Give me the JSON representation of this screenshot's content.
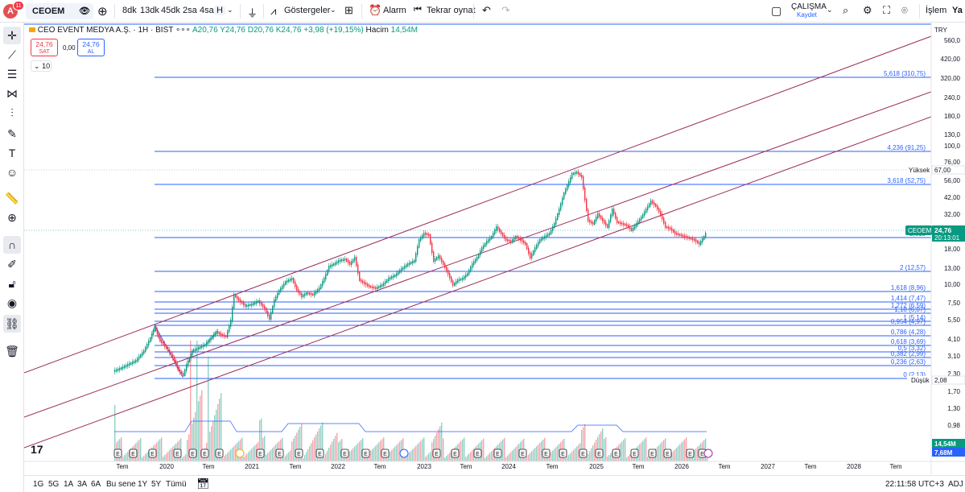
{
  "topbar": {
    "avatar_letter": "A",
    "notif_count": "11",
    "symbol": "CEOEM",
    "intervals": [
      "8dk",
      "13dk",
      "45dk",
      "2sa",
      "4sa",
      "H"
    ],
    "indicators_label": "Göstergeler",
    "alarm_label": "Alarm",
    "replay_label": "Tekrar oynat",
    "workspace_name": "ÇALIŞMA",
    "save_label": "Kaydet",
    "trade_label": "İşlem",
    "publish_label": "Ya"
  },
  "legend": {
    "title": "CEO EVENT MEDYA A.Ş. · 1H · BIST",
    "ohlc": "A20,76 Y24,76 D20,76 K24,76 +3,98 (+19,15%)",
    "volume_label": "Hacim",
    "volume_value": "14,54M",
    "sell_price": "24,76",
    "sell_label": "SAT",
    "spread": "0,00",
    "buy_price": "24,76",
    "buy_label": "AL",
    "indicator_count": "10"
  },
  "price_axis": {
    "currency": "TRY",
    "ticks": [
      "560,0",
      "420,00",
      "320,00",
      "240,0",
      "180,0",
      "130,0",
      "100,0",
      "76,00",
      "56,00",
      "42,00",
      "32,00",
      "24,00",
      "18,00",
      "13,00",
      "10,00",
      "7,50",
      "5,50",
      "4,10",
      "3,10",
      "2,30",
      "1,70",
      "1,30",
      "0,98"
    ],
    "high_label": "Yüksek",
    "high_value": "67,00",
    "low_label": "Düşük",
    "low_value": "2,08",
    "last_symbol": "CEOEM",
    "last_price": "24,76",
    "countdown": "20:13:01",
    "vol_1": "14,54M",
    "vol_2": "7,68M"
  },
  "fib_levels": [
    {
      "label": "5,618 (310,75)"
    },
    {
      "label": "4,236 (91,25)"
    },
    {
      "label": "3,618 (52,75)"
    },
    {
      "label": "2,618"
    },
    {
      "label": "2 (12,57)"
    },
    {
      "label": "1,618 (8,96)"
    },
    {
      "label": "1,414 (7,47)"
    },
    {
      "label": "1,272 (6,59)"
    },
    {
      "label": "1,18 (6,07)"
    },
    {
      "label": "1 (5,14)"
    },
    {
      "label": "0,954 (4,97)"
    },
    {
      "label": "0,786 (4,28)"
    },
    {
      "label": "0,618 (3,69)"
    },
    {
      "label": "0,5 (3,32)"
    },
    {
      "label": "0,382 (2,99)"
    },
    {
      "label": "0,236 (2,63)"
    },
    {
      "label": "0 (2,13)"
    }
  ],
  "time_axis": [
    "Tem",
    "2020",
    "Tem",
    "2021",
    "Tem",
    "2022",
    "Tem",
    "2023",
    "Tem",
    "2024",
    "Tem",
    "2025",
    "Tem",
    "2026",
    "Tem",
    "2027",
    "Tem",
    "2028",
    "Tem"
  ],
  "bottombar": {
    "ranges": [
      "1G",
      "5G",
      "1A",
      "3A",
      "6A",
      "Bu sene",
      "1Y",
      "5Y",
      "Tümü"
    ],
    "clock": "22:11:58 UTC+3",
    "adj": "ADJ"
  },
  "colors": {
    "up": "#089981",
    "down": "#f23645",
    "fib": "#2962ff",
    "channel": "#9c2a5a",
    "accent": "#2962ff"
  },
  "icons": [
    "crosshair-icon",
    "trendline-icon",
    "fib-icon",
    "pattern-icon",
    "measure-icon",
    "brush-icon",
    "text-icon",
    "emoji-icon",
    "ruler-icon",
    "zoom-icon",
    "magnet-icon",
    "lock-drawing-icon",
    "lock-icon",
    "eye-icon",
    "link-icon",
    "trash-icon"
  ]
}
